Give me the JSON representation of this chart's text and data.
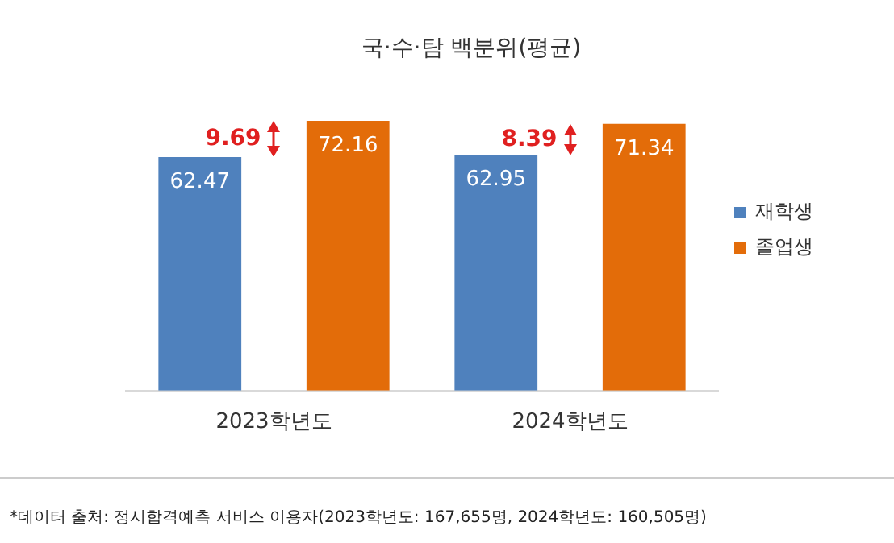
{
  "chart_data": {
    "type": "bar",
    "title": "국·수·탐 백분위(평균)",
    "categories": [
      "2023학년도",
      "2024학년도"
    ],
    "series": [
      {
        "name": "재학생",
        "color": "#4f81bd",
        "values": [
          62.47,
          62.95
        ]
      },
      {
        "name": "졸업생",
        "color": "#e36c09",
        "values": [
          72.16,
          71.34
        ]
      }
    ],
    "data_labels": true,
    "legend": "right",
    "grid": false,
    "annotations": [
      "9.69",
      "8.39",
      "*데이터 출처: 정시합격예측 서비스 이용자(2023학년도: 167,655명, 2024학년도: 160,505명)"
    ]
  }
}
